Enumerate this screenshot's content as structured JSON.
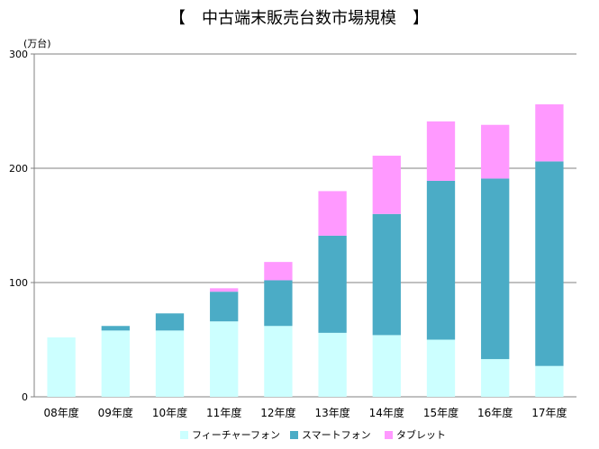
{
  "chart_data": {
    "type": "bar",
    "stacked": true,
    "title": "【　中古端末販売台数市場規模　】",
    "unit_label": "(万台)",
    "xlabel": "",
    "ylabel": "",
    "categories": [
      "08年度",
      "09年度",
      "10年度",
      "11年度",
      "12年度",
      "13年度",
      "14年度",
      "15年度",
      "16年度",
      "17年度"
    ],
    "series": [
      {
        "name": "フィーチャーフォン",
        "color": "#ccffff",
        "values": [
          52,
          58,
          58,
          66,
          62,
          56,
          54,
          50,
          33,
          27
        ]
      },
      {
        "name": "スマートフォン",
        "color": "#4bacc6",
        "values": [
          0,
          4,
          15,
          26,
          40,
          85,
          106,
          139,
          158,
          179
        ]
      },
      {
        "name": "タブレット",
        "color": "#ff99ff",
        "values": [
          0,
          0,
          0,
          3,
          16,
          39,
          51,
          52,
          47,
          50
        ]
      }
    ],
    "ylim": [
      0,
      300
    ],
    "yticks": [
      0,
      100,
      200,
      300
    ],
    "grid": true,
    "legend_position": "bottom"
  }
}
